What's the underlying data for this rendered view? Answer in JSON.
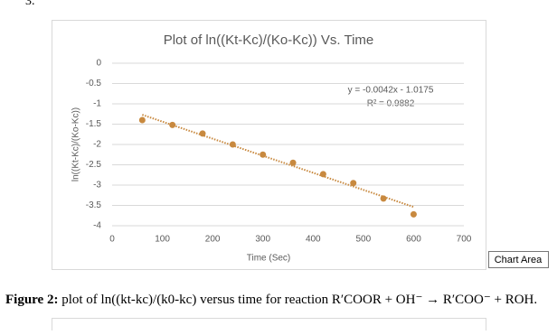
{
  "page_marker": "3.",
  "tooltip": "Chart Area",
  "caption": {
    "label": "Figure 2:",
    "text": "plot of ln((kt-kc)/(k0-kc) versus time for reaction R′COOR + OH⁻ → R′COO⁻ + ROH."
  },
  "chart_data": {
    "type": "scatter",
    "title": "Plot of ln((Kt-Kc)/(Ko-Kc)) Vs. Time",
    "x_label": "Time (Sec)",
    "y_label": "ln((Kt-Kc)/(Ko-Kc))",
    "series": [
      {
        "color": "#c8893f",
        "x": [
          60,
          120,
          180,
          240,
          300,
          360,
          420,
          480,
          540,
          600
        ],
        "values": [
          -1.4,
          -1.52,
          -1.73,
          -2.0,
          -2.25,
          -2.45,
          -2.73,
          -2.95,
          -3.33,
          -3.72
        ]
      }
    ],
    "trendline": {
      "slope": -0.0042,
      "intercept": -1.0175,
      "equation": "y = -0.0042x - 1.0175",
      "r_squared": "R² = 0.9882"
    },
    "xlim": [
      0,
      700
    ],
    "xticks": [
      0,
      100,
      200,
      300,
      400,
      500,
      600,
      700
    ],
    "ylim": [
      -4,
      0
    ],
    "yticks": [
      0,
      -0.5,
      -1,
      -1.5,
      -2,
      -2.5,
      -3,
      -3.5,
      -4
    ],
    "grid": true
  }
}
